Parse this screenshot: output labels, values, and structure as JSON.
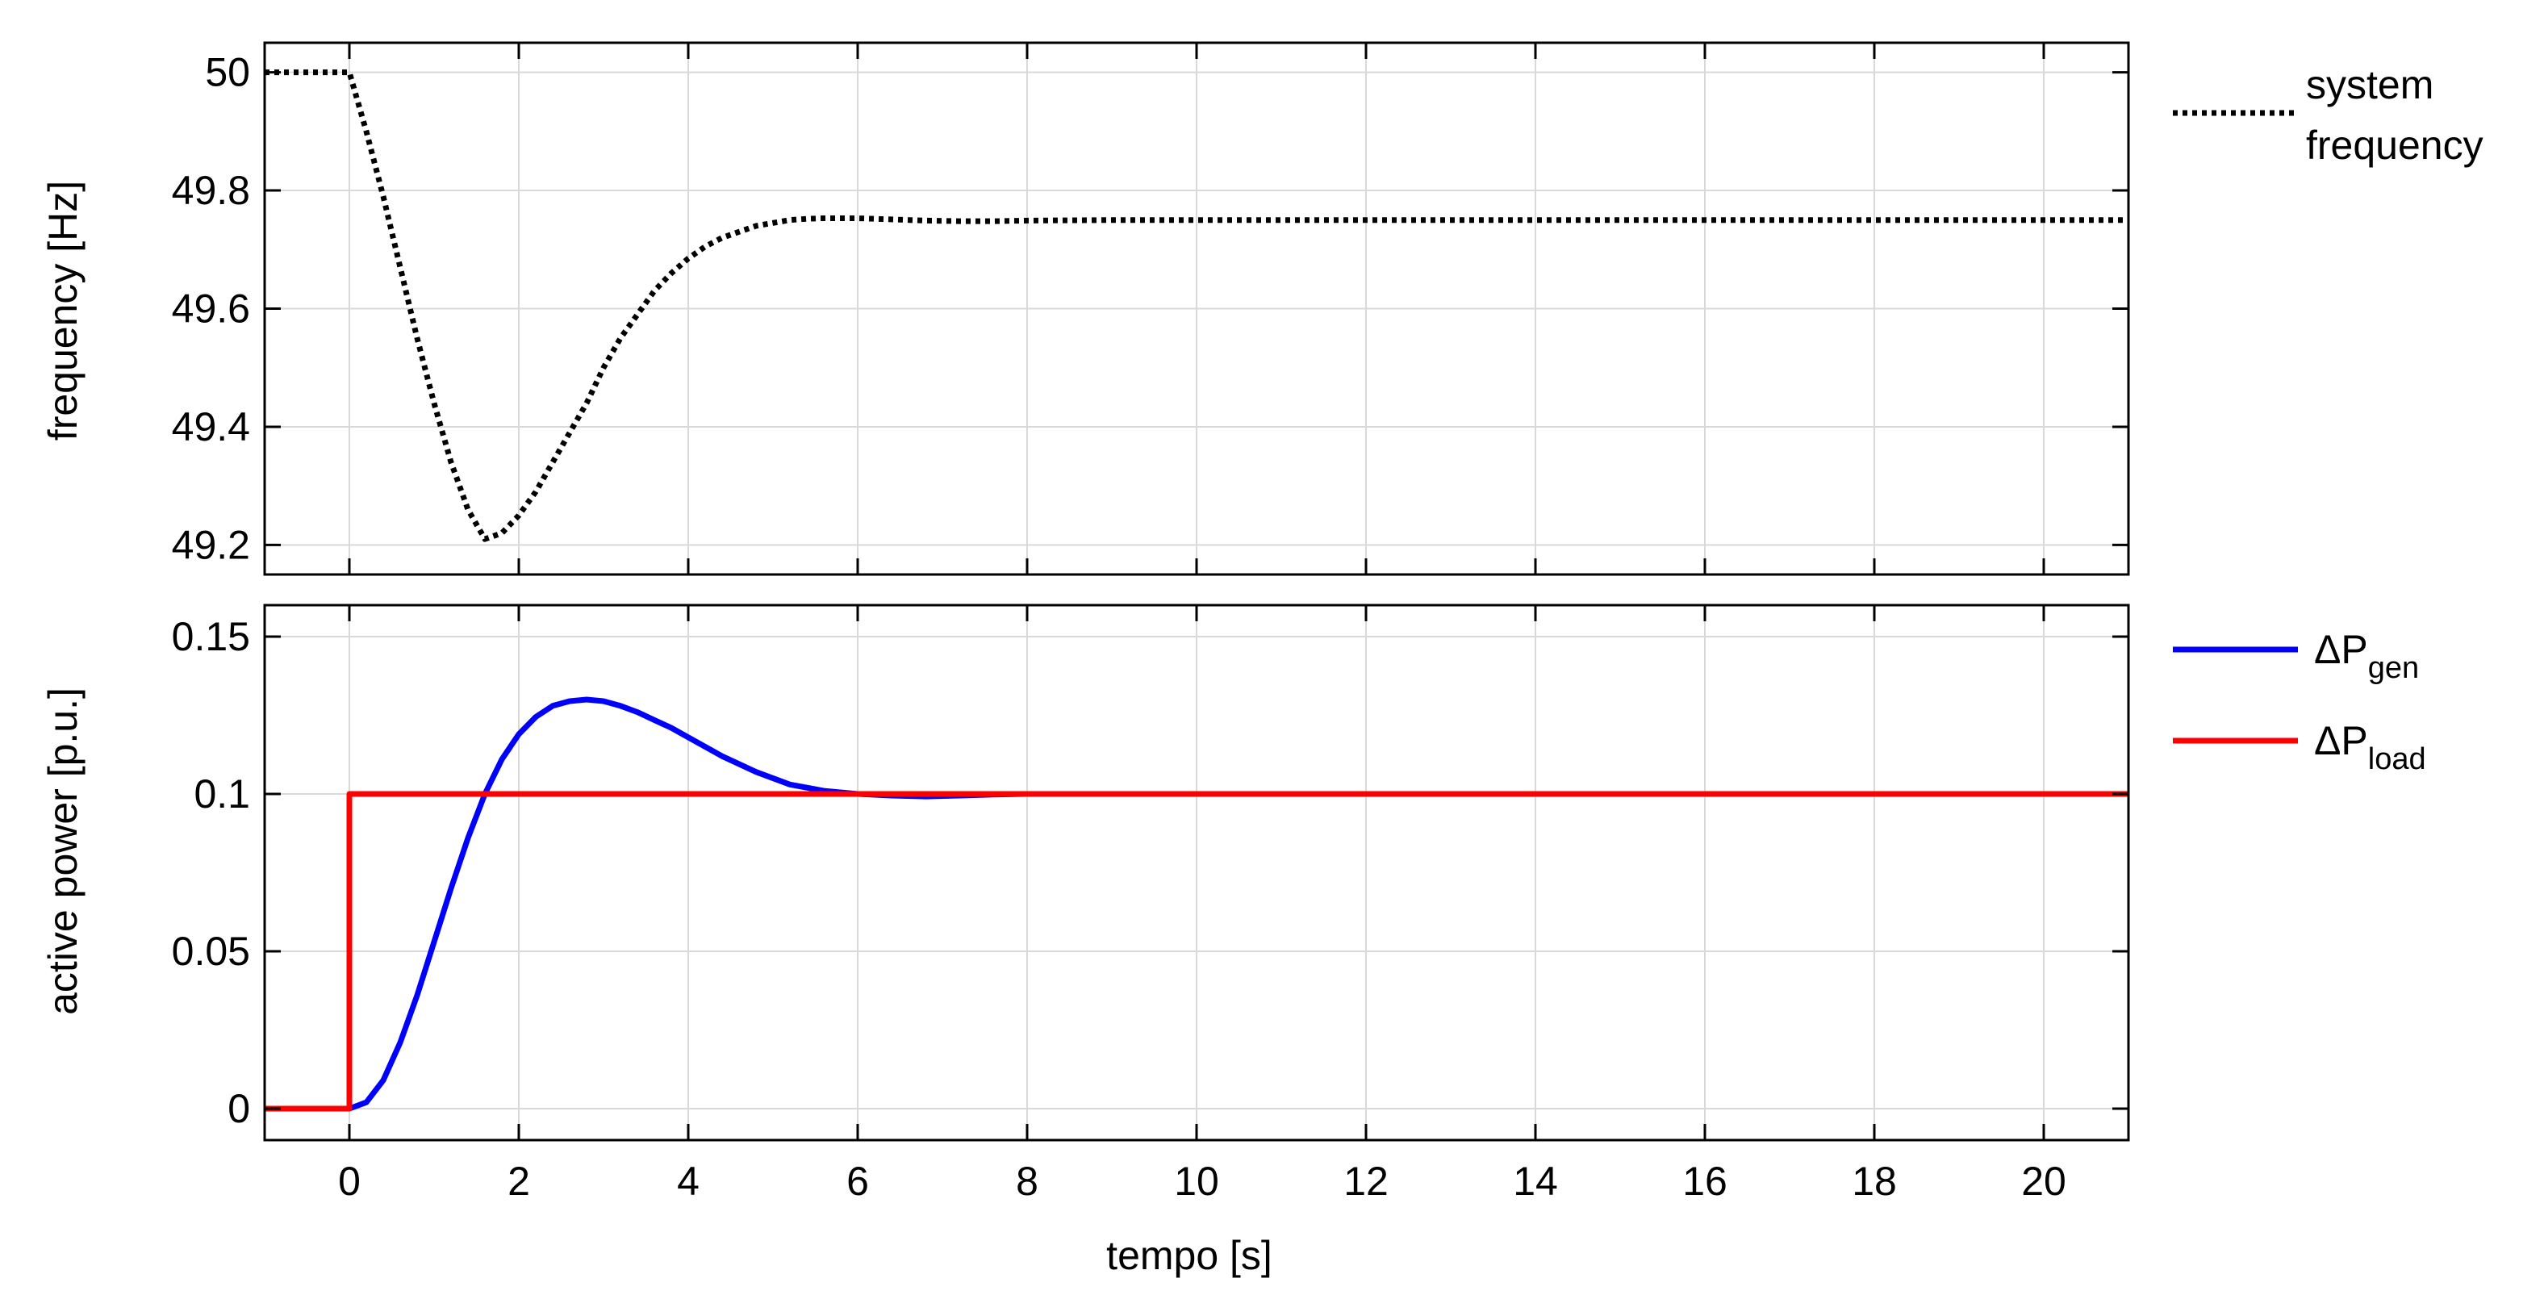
{
  "chart_data": [
    {
      "type": "line",
      "ylabel": "frequency [Hz]",
      "xlim": [
        -1,
        21
      ],
      "ylim": [
        49.15,
        50.05
      ],
      "x_ticks": [
        0,
        2,
        4,
        6,
        8,
        10,
        12,
        14,
        16,
        18,
        20
      ],
      "y_ticks": [
        49.2,
        49.4,
        49.6,
        49.8,
        50
      ],
      "y_tick_labels": [
        "49.2",
        "49.4",
        "49.6",
        "49.8",
        "50"
      ],
      "grid": true,
      "legend_position": "right",
      "series": [
        {
          "name": "system frequency",
          "color": "#000000",
          "style": "dotted",
          "x": [
            -1,
            0,
            0.2,
            0.4,
            0.6,
            0.8,
            1.0,
            1.2,
            1.4,
            1.6,
            1.8,
            2.0,
            2.2,
            2.4,
            2.6,
            2.8,
            3.0,
            3.2,
            3.4,
            3.6,
            3.8,
            4.0,
            4.2,
            4.4,
            4.6,
            4.8,
            5.0,
            5.2,
            5.4,
            5.6,
            5.8,
            6.0,
            6.4,
            6.8,
            7.2,
            7.6,
            8.0,
            9,
            10,
            12,
            14,
            16,
            18,
            20,
            21
          ],
          "y": [
            50,
            50,
            49.9,
            49.79,
            49.67,
            49.55,
            49.44,
            49.34,
            49.26,
            49.21,
            49.22,
            49.25,
            49.29,
            49.34,
            49.39,
            49.44,
            49.5,
            49.55,
            49.59,
            49.63,
            49.66,
            49.685,
            49.705,
            49.72,
            49.73,
            49.74,
            49.745,
            49.75,
            49.752,
            49.753,
            49.753,
            49.753,
            49.751,
            49.749,
            49.748,
            49.748,
            49.749,
            49.75,
            49.75,
            49.75,
            49.75,
            49.75,
            49.75,
            49.75,
            49.75
          ]
        }
      ]
    },
    {
      "type": "line",
      "xlabel": "tempo [s]",
      "ylabel": "active power [p.u.]",
      "xlim": [
        -1,
        21
      ],
      "ylim": [
        -0.01,
        0.16
      ],
      "x_ticks": [
        0,
        2,
        4,
        6,
        8,
        10,
        12,
        14,
        16,
        18,
        20
      ],
      "x_tick_labels": [
        "0",
        "2",
        "4",
        "6",
        "8",
        "10",
        "12",
        "14",
        "16",
        "18",
        "20"
      ],
      "y_ticks": [
        0,
        0.05,
        0.1,
        0.15
      ],
      "y_tick_labels": [
        "0",
        "0.05",
        "0.1",
        "0.15"
      ],
      "grid": true,
      "legend_position": "right",
      "series": [
        {
          "name": "ΔP",
          "subscript": "gen",
          "color": "#0000ff",
          "style": "solid",
          "x": [
            -1,
            0,
            0.2,
            0.4,
            0.6,
            0.8,
            1.0,
            1.2,
            1.4,
            1.6,
            1.8,
            2.0,
            2.2,
            2.4,
            2.6,
            2.8,
            3.0,
            3.2,
            3.4,
            3.6,
            3.8,
            4.0,
            4.4,
            4.8,
            5.2,
            5.6,
            6.0,
            6.4,
            6.8,
            7.2,
            7.6,
            8.0,
            9,
            10,
            12,
            14,
            16,
            18,
            20,
            21
          ],
          "y": [
            0,
            0,
            0.002,
            0.009,
            0.021,
            0.036,
            0.053,
            0.07,
            0.086,
            0.1,
            0.111,
            0.119,
            0.1245,
            0.128,
            0.1295,
            0.13,
            0.1295,
            0.128,
            0.126,
            0.1235,
            0.121,
            0.118,
            0.112,
            0.107,
            0.103,
            0.101,
            0.1,
            0.0995,
            0.0992,
            0.0995,
            0.0998,
            0.1,
            0.1,
            0.1,
            0.1,
            0.1,
            0.1,
            0.1,
            0.1,
            0.1
          ]
        },
        {
          "name": "ΔP",
          "subscript": "load",
          "color": "#ff0000",
          "style": "solid",
          "x": [
            -1,
            0,
            0,
            21
          ],
          "y": [
            0,
            0,
            0.1,
            0.1
          ]
        }
      ]
    }
  ]
}
